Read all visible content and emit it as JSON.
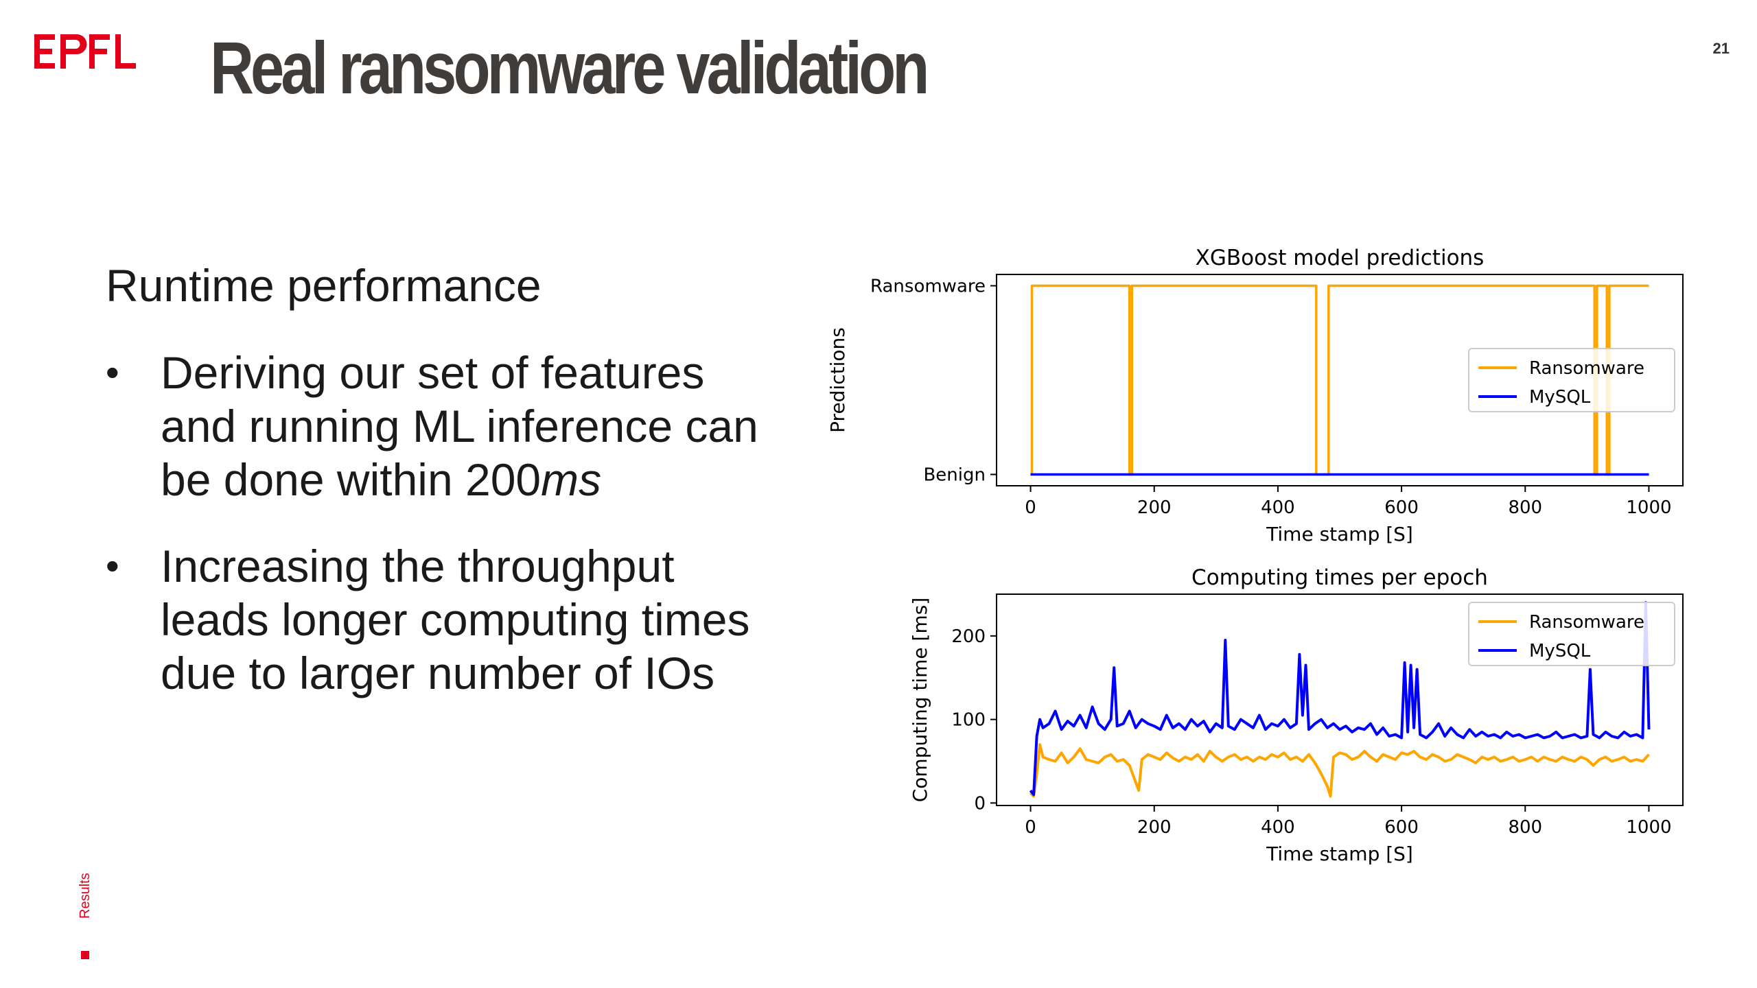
{
  "header": {
    "logo_text": "EPFL",
    "title": "Real ransomware validation",
    "page_number": "21"
  },
  "sidebar": {
    "section_label": "Results"
  },
  "content": {
    "subtitle": "Runtime performance",
    "bullets": [
      {
        "marker": "•",
        "text": "Deriving our set of features and running ML inference can be done within 200",
        "unit": "ms"
      },
      {
        "marker": "•",
        "text": "Increasing the throughput leads longer computing times due to larger number of IOs",
        "unit": ""
      }
    ]
  },
  "colors": {
    "brand_red": "#e2001a",
    "title_gray": "#413d3a",
    "ransomware": "#ffa500",
    "mysql": "#0000ff"
  },
  "chart_data": [
    {
      "type": "line",
      "title": "XGBoost model predictions",
      "xlabel": "Time stamp [S]",
      "ylabel": "Predictions",
      "xlim": [
        -55,
        1055
      ],
      "ylim": [
        -0.06,
        1.06
      ],
      "xticks": [
        0,
        200,
        400,
        600,
        800,
        1000
      ],
      "yticks": [
        0,
        1
      ],
      "ytick_labels": [
        "Benign",
        "Ransomware"
      ],
      "grid": false,
      "legend": "center-right",
      "series": [
        {
          "name": "Ransomware",
          "color": "#ffa500",
          "x": [
            0,
            2,
            2,
            158,
            160,
            160,
            162,
            164,
            164,
            460,
            462,
            462,
            480,
            482,
            482,
            910,
            912,
            912,
            914,
            916,
            916,
            930,
            932,
            932,
            934,
            936,
            936,
            1000
          ],
          "y": [
            0,
            0,
            1,
            1,
            1,
            0,
            0,
            0,
            1,
            1,
            1,
            0,
            0,
            0,
            1,
            1,
            1,
            0,
            0,
            0,
            1,
            1,
            1,
            0,
            0,
            0,
            1,
            1
          ]
        },
        {
          "name": "MySQL",
          "color": "#0000ff",
          "x": [
            0,
            1000
          ],
          "y": [
            0,
            0
          ]
        }
      ]
    },
    {
      "type": "line",
      "title": "Computing times per epoch",
      "xlabel": "Time stamp [S]",
      "ylabel": "Computing time [ms]",
      "xlim": [
        -55,
        1055
      ],
      "ylim": [
        -3,
        250
      ],
      "xticks": [
        0,
        200,
        400,
        600,
        800,
        1000
      ],
      "yticks": [
        0,
        100,
        200
      ],
      "grid": false,
      "legend": "top-right",
      "series": [
        {
          "name": "Ransomware",
          "color": "#ffa500",
          "x": [
            0,
            5,
            10,
            15,
            20,
            30,
            40,
            50,
            60,
            70,
            80,
            90,
            100,
            110,
            120,
            130,
            140,
            150,
            160,
            170,
            175,
            180,
            190,
            200,
            210,
            220,
            230,
            240,
            250,
            260,
            270,
            280,
            290,
            300,
            310,
            320,
            330,
            340,
            350,
            360,
            370,
            380,
            390,
            400,
            410,
            420,
            430,
            440,
            450,
            460,
            470,
            480,
            485,
            490,
            500,
            510,
            520,
            530,
            540,
            550,
            560,
            570,
            580,
            590,
            600,
            610,
            620,
            630,
            640,
            650,
            660,
            670,
            680,
            690,
            700,
            710,
            720,
            730,
            740,
            750,
            760,
            770,
            780,
            790,
            800,
            810,
            820,
            830,
            840,
            850,
            860,
            870,
            880,
            890,
            900,
            910,
            920,
            930,
            940,
            950,
            960,
            970,
            980,
            990,
            1000
          ],
          "y": [
            12,
            8,
            35,
            70,
            55,
            52,
            50,
            60,
            48,
            55,
            65,
            52,
            50,
            48,
            55,
            58,
            50,
            52,
            45,
            25,
            15,
            52,
            58,
            55,
            52,
            60,
            54,
            50,
            55,
            52,
            58,
            50,
            62,
            55,
            50,
            55,
            58,
            52,
            55,
            50,
            55,
            52,
            58,
            55,
            60,
            52,
            55,
            50,
            58,
            48,
            35,
            20,
            8,
            55,
            60,
            58,
            52,
            55,
            62,
            55,
            50,
            58,
            55,
            52,
            60,
            58,
            62,
            55,
            52,
            58,
            55,
            50,
            52,
            58,
            55,
            52,
            48,
            55,
            52,
            55,
            50,
            52,
            55,
            50,
            52,
            55,
            50,
            55,
            52,
            50,
            55,
            52,
            50,
            55,
            52,
            45,
            52,
            55,
            50,
            52,
            55,
            50,
            52,
            50,
            58
          ]
        },
        {
          "name": "MySQL",
          "color": "#0000ff",
          "x": [
            0,
            5,
            10,
            15,
            20,
            30,
            40,
            50,
            60,
            70,
            80,
            90,
            100,
            110,
            120,
            130,
            135,
            140,
            150,
            160,
            170,
            180,
            190,
            200,
            210,
            220,
            230,
            240,
            250,
            260,
            270,
            280,
            290,
            300,
            310,
            315,
            320,
            330,
            340,
            350,
            360,
            370,
            380,
            390,
            400,
            410,
            420,
            430,
            435,
            440,
            445,
            450,
            460,
            470,
            480,
            490,
            500,
            510,
            520,
            530,
            540,
            550,
            560,
            570,
            580,
            590,
            600,
            605,
            610,
            615,
            620,
            625,
            630,
            640,
            650,
            660,
            670,
            680,
            690,
            700,
            710,
            720,
            730,
            740,
            750,
            760,
            770,
            780,
            790,
            800,
            810,
            820,
            830,
            840,
            850,
            860,
            870,
            880,
            890,
            900,
            905,
            910,
            920,
            930,
            940,
            950,
            960,
            970,
            980,
            990,
            995,
            1000
          ],
          "y": [
            15,
            10,
            80,
            100,
            90,
            95,
            110,
            88,
            98,
            92,
            105,
            90,
            115,
            95,
            88,
            100,
            162,
            92,
            95,
            110,
            90,
            100,
            95,
            92,
            88,
            105,
            90,
            95,
            88,
            100,
            92,
            98,
            85,
            95,
            90,
            195,
            92,
            88,
            100,
            95,
            90,
            105,
            88,
            95,
            92,
            100,
            90,
            95,
            178,
            105,
            165,
            88,
            95,
            100,
            90,
            95,
            88,
            92,
            85,
            90,
            88,
            95,
            82,
            90,
            80,
            82,
            78,
            168,
            85,
            165,
            90,
            160,
            82,
            78,
            85,
            95,
            80,
            90,
            82,
            78,
            88,
            80,
            85,
            80,
            82,
            78,
            85,
            80,
            82,
            78,
            80,
            82,
            78,
            80,
            85,
            78,
            80,
            82,
            78,
            80,
            160,
            82,
            78,
            85,
            80,
            78,
            85,
            80,
            82,
            78,
            240,
            88
          ]
        }
      ]
    }
  ]
}
